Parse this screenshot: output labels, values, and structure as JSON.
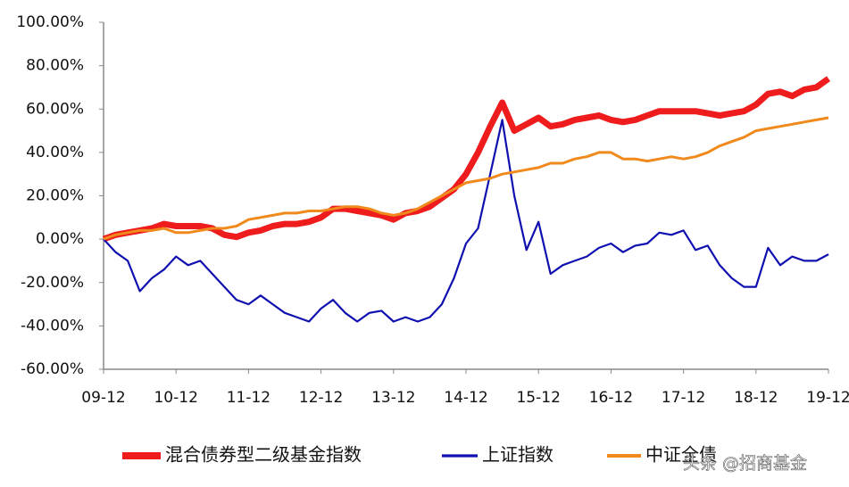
{
  "chart_data": {
    "type": "line",
    "categories": [
      "09-12",
      null,
      null,
      null,
      null,
      null,
      "10-12",
      null,
      null,
      null,
      null,
      null,
      "11-12",
      null,
      null,
      null,
      null,
      null,
      "12-12",
      null,
      null,
      null,
      null,
      null,
      "13-12",
      null,
      null,
      null,
      null,
      null,
      "14-12",
      null,
      null,
      null,
      null,
      null,
      "15-12",
      null,
      null,
      null,
      null,
      null,
      "16-12",
      null,
      null,
      null,
      null,
      null,
      "17-12",
      null,
      null,
      null,
      null,
      null,
      "18-12",
      null,
      null,
      null,
      null,
      null,
      "19-12"
    ],
    "series": [
      {
        "name": "混合债券型二级基金指数",
        "color": "#ee1c1c",
        "width": 7,
        "values": [
          0,
          2,
          3,
          4,
          5,
          7,
          6,
          6,
          6,
          5,
          2,
          1,
          3,
          4,
          6,
          7,
          7,
          8,
          10,
          14,
          14,
          13,
          12,
          11,
          9,
          12,
          13,
          15,
          19,
          23,
          30,
          40,
          52,
          63,
          50,
          53,
          56,
          52,
          53,
          55,
          56,
          57,
          55,
          54,
          55,
          57,
          59,
          59,
          59,
          59,
          58,
          57,
          58,
          59,
          62,
          67,
          68,
          66,
          69,
          70,
          74
        ]
      },
      {
        "name": "上证指数",
        "color": "#1010b0",
        "width": 2.2,
        "values": [
          0,
          -6,
          -10,
          -24,
          -18,
          -14,
          -8,
          -12,
          -10,
          -16,
          -22,
          -28,
          -30,
          -26,
          -30,
          -34,
          -36,
          -38,
          -32,
          -28,
          -34,
          -38,
          -34,
          -33,
          -38,
          -36,
          -38,
          -36,
          -30,
          -18,
          -2,
          5,
          30,
          55,
          20,
          -5,
          8,
          -16,
          -12,
          -10,
          -8,
          -4,
          -2,
          -6,
          -3,
          -2,
          3,
          2,
          4,
          -5,
          -3,
          -12,
          -18,
          -22,
          -22,
          -4,
          -12,
          -8,
          -10,
          -10,
          -7
        ]
      },
      {
        "name": "中证全债",
        "color": "#f08a1c",
        "width": 3,
        "values": [
          0,
          2,
          3,
          4,
          4,
          5,
          3,
          3,
          4,
          5,
          5,
          6,
          9,
          10,
          11,
          12,
          12,
          13,
          13,
          14,
          15,
          15,
          14,
          12,
          11,
          12,
          14,
          17,
          20,
          23,
          26,
          27,
          28,
          30,
          31,
          32,
          33,
          35,
          35,
          37,
          38,
          40,
          40,
          37,
          37,
          36,
          37,
          38,
          37,
          38,
          40,
          43,
          45,
          47,
          50,
          51,
          52,
          53,
          54,
          55,
          56
        ]
      }
    ],
    "ylim": [
      -60,
      100
    ],
    "yticks": [
      {
        "value": -60,
        "label": "-60.00%"
      },
      {
        "value": -40,
        "label": "-40.00%"
      },
      {
        "value": -20,
        "label": "-20.00%"
      },
      {
        "value": 0,
        "label": "0.00%"
      },
      {
        "value": 20,
        "label": "20.00%"
      },
      {
        "value": 40,
        "label": "40.00%"
      },
      {
        "value": 60,
        "label": "60.00%"
      },
      {
        "value": 80,
        "label": "80.00%"
      },
      {
        "value": 100,
        "label": "100.00%"
      }
    ],
    "legend": "bottom",
    "watermark": "头条 @招商基金"
  }
}
